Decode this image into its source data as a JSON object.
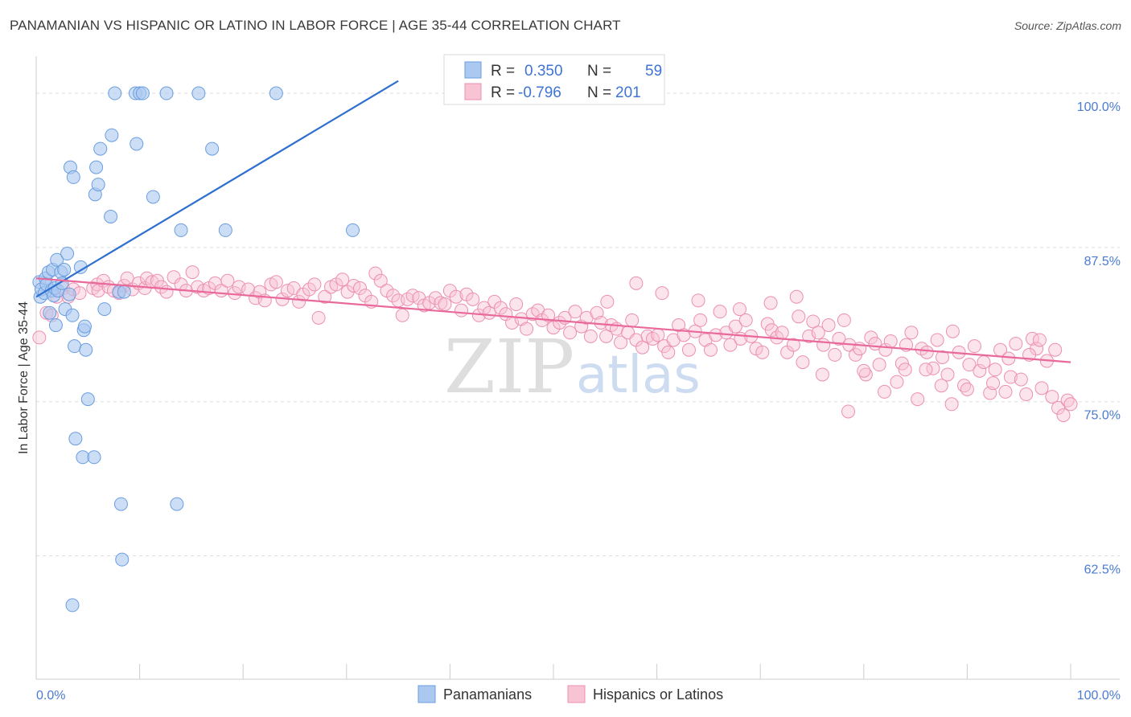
{
  "title": "PANAMANIAN VS HISPANIC OR LATINO IN LABOR FORCE | AGE 35-44 CORRELATION CHART",
  "source": "Source: ZipAtlas.com",
  "watermark": {
    "zip": "ZIP",
    "atlas": "atlas"
  },
  "colors": {
    "blue_fill": "#aac8f0",
    "blue_stroke": "#6a9ee0",
    "blue_line": "#2e6fcf",
    "pink_fill": "#f8c4d4",
    "pink_stroke": "#ec8fb0",
    "pink_line": "#e8699a",
    "tick_label": "#4a7bd0",
    "grid": "#dddddd"
  },
  "legend": {
    "rows": [
      {
        "r_label": "R =",
        "r_value": "0.350",
        "n_label": "N =",
        "n_value": "59"
      },
      {
        "r_label": "R =",
        "r_value": "-0.796",
        "n_label": "N =",
        "n_value": "201"
      }
    ]
  },
  "bottom_legend": [
    "Panamanians",
    "Hispanics or Latinos"
  ],
  "chart_data": {
    "type": "scatter",
    "title": "PANAMANIAN VS HISPANIC OR LATINO IN LABOR FORCE | AGE 35-44 CORRELATION CHART",
    "ylabel": "In Labor Force | Age 35-44",
    "xlabel": "",
    "x_tick_labels": [
      "0.0%",
      "100.0%"
    ],
    "y_tick_labels": [
      "100.0%",
      "87.5%",
      "75.0%",
      "62.5%"
    ],
    "y_ticks": [
      100.0,
      87.5,
      75.0,
      62.5
    ],
    "xlim": [
      0,
      100
    ],
    "ylim": [
      52.5,
      103
    ],
    "grid": "horizontal dashed",
    "legend_position": "top-center",
    "series": [
      {
        "name": "Panamanians",
        "color": "#aac8f0",
        "r": 0.35,
        "n": 59,
        "trend": {
          "x": [
            0,
            35
          ],
          "y": [
            83.5,
            101.0
          ]
        },
        "points": [
          [
            0.3,
            84.7
          ],
          [
            0.4,
            83.5
          ],
          [
            0.5,
            84.1
          ],
          [
            0.8,
            83.8
          ],
          [
            0.9,
            85.0
          ],
          [
            1.0,
            84.5
          ],
          [
            1.2,
            85.5
          ],
          [
            1.3,
            82.2
          ],
          [
            1.5,
            84.0
          ],
          [
            1.6,
            85.7
          ],
          [
            1.7,
            83.6
          ],
          [
            1.8,
            84.2
          ],
          [
            1.9,
            81.2
          ],
          [
            2.0,
            86.5
          ],
          [
            2.1,
            84.0
          ],
          [
            2.4,
            85.5
          ],
          [
            2.5,
            84.6
          ],
          [
            2.7,
            85.7
          ],
          [
            2.8,
            82.5
          ],
          [
            3.0,
            87.0
          ],
          [
            3.2,
            83.7
          ],
          [
            3.3,
            94.0
          ],
          [
            3.5,
            82.0
          ],
          [
            3.6,
            93.2
          ],
          [
            3.7,
            79.5
          ],
          [
            3.8,
            72.0
          ],
          [
            4.3,
            85.9
          ],
          [
            4.5,
            70.5
          ],
          [
            4.6,
            80.8
          ],
          [
            4.7,
            81.1
          ],
          [
            4.8,
            79.2
          ],
          [
            5.0,
            75.2
          ],
          [
            5.6,
            70.5
          ],
          [
            5.7,
            91.8
          ],
          [
            5.8,
            94.0
          ],
          [
            6.0,
            92.6
          ],
          [
            6.2,
            95.5
          ],
          [
            6.6,
            82.5
          ],
          [
            7.2,
            90.0
          ],
          [
            7.3,
            96.6
          ],
          [
            7.6,
            100.0
          ],
          [
            8.0,
            83.9
          ],
          [
            8.3,
            62.2
          ],
          [
            8.2,
            66.7
          ],
          [
            8.5,
            83.9
          ],
          [
            9.6,
            100.0
          ],
          [
            9.7,
            95.9
          ],
          [
            10.0,
            100.0
          ],
          [
            10.3,
            100.0
          ],
          [
            11.3,
            91.6
          ],
          [
            12.6,
            100.0
          ],
          [
            13.6,
            66.7
          ],
          [
            14.0,
            88.9
          ],
          [
            15.7,
            100.0
          ],
          [
            17.0,
            95.5
          ],
          [
            18.3,
            88.9
          ],
          [
            23.2,
            100.0
          ],
          [
            30.6,
            88.9
          ],
          [
            3.5,
            58.5
          ]
        ]
      },
      {
        "name": "Hispanics or Latinos",
        "color": "#f8c4d4",
        "r": -0.796,
        "n": 201,
        "trend": {
          "x": [
            0,
            100
          ],
          "y": [
            85.0,
            78.2
          ]
        },
        "points": [
          [
            0.3,
            80.2
          ],
          [
            1.0,
            82.2
          ],
          [
            1.5,
            82.0
          ],
          [
            2.0,
            83.5
          ],
          [
            2.6,
            84.2
          ],
          [
            3.1,
            83.5
          ],
          [
            3.6,
            84.1
          ],
          [
            4.2,
            83.8
          ],
          [
            5.5,
            84.2
          ],
          [
            5.9,
            84.5
          ],
          [
            6.0,
            84.0
          ],
          [
            6.5,
            84.8
          ],
          [
            7.0,
            84.3
          ],
          [
            7.5,
            84.0
          ],
          [
            8.0,
            83.8
          ],
          [
            8.5,
            84.4
          ],
          [
            8.8,
            85.0
          ],
          [
            9.3,
            84.1
          ],
          [
            9.9,
            84.6
          ],
          [
            10.5,
            84.2
          ],
          [
            10.7,
            85.0
          ],
          [
            11.2,
            84.7
          ],
          [
            11.7,
            84.8
          ],
          [
            12.1,
            84.3
          ],
          [
            12.6,
            83.9
          ],
          [
            13.3,
            85.1
          ],
          [
            14.0,
            84.5
          ],
          [
            14.5,
            84.0
          ],
          [
            15.1,
            85.5
          ],
          [
            15.6,
            84.3
          ],
          [
            16.2,
            84.0
          ],
          [
            16.7,
            84.2
          ],
          [
            17.3,
            84.6
          ],
          [
            17.9,
            84.0
          ],
          [
            18.5,
            84.8
          ],
          [
            19.2,
            83.8
          ],
          [
            19.6,
            84.3
          ],
          [
            20.5,
            84.1
          ],
          [
            21.2,
            83.4
          ],
          [
            21.6,
            83.9
          ],
          [
            22.1,
            83.2
          ],
          [
            22.7,
            84.5
          ],
          [
            23.2,
            84.7
          ],
          [
            23.8,
            83.3
          ],
          [
            24.3,
            84.0
          ],
          [
            24.9,
            84.2
          ],
          [
            25.4,
            83.1
          ],
          [
            25.8,
            83.7
          ],
          [
            26.4,
            84.1
          ],
          [
            26.9,
            84.5
          ],
          [
            27.3,
            81.8
          ],
          [
            27.9,
            83.5
          ],
          [
            28.5,
            84.3
          ],
          [
            29.0,
            84.5
          ],
          [
            29.6,
            84.9
          ],
          [
            30.1,
            83.9
          ],
          [
            30.7,
            84.4
          ],
          [
            31.3,
            84.2
          ],
          [
            31.8,
            83.6
          ],
          [
            32.4,
            83.1
          ],
          [
            32.8,
            85.4
          ],
          [
            33.3,
            84.8
          ],
          [
            33.9,
            84.0
          ],
          [
            34.5,
            83.6
          ],
          [
            35.0,
            83.2
          ],
          [
            35.4,
            82.0
          ],
          [
            35.9,
            83.3
          ],
          [
            36.4,
            83.6
          ],
          [
            37.0,
            83.4
          ],
          [
            37.5,
            82.8
          ],
          [
            38.0,
            83.0
          ],
          [
            38.6,
            83.4
          ],
          [
            39.1,
            83.0
          ],
          [
            39.5,
            82.9
          ],
          [
            40.0,
            84.0
          ],
          [
            40.6,
            83.5
          ],
          [
            41.1,
            82.4
          ],
          [
            41.6,
            83.7
          ],
          [
            42.2,
            83.3
          ],
          [
            42.8,
            82.0
          ],
          [
            43.3,
            82.6
          ],
          [
            43.8,
            82.2
          ],
          [
            44.3,
            83.1
          ],
          [
            44.9,
            82.6
          ],
          [
            45.4,
            82.1
          ],
          [
            46.0,
            81.4
          ],
          [
            46.4,
            82.9
          ],
          [
            46.9,
            81.7
          ],
          [
            47.4,
            80.9
          ],
          [
            48.0,
            82.1
          ],
          [
            48.5,
            82.4
          ],
          [
            48.9,
            81.6
          ],
          [
            49.5,
            82.0
          ],
          [
            50.0,
            81.0
          ],
          [
            50.6,
            81.4
          ],
          [
            51.1,
            81.8
          ],
          [
            51.6,
            80.6
          ],
          [
            52.1,
            82.3
          ],
          [
            52.7,
            81.1
          ],
          [
            53.2,
            81.8
          ],
          [
            53.6,
            80.3
          ],
          [
            54.2,
            82.2
          ],
          [
            54.6,
            81.4
          ],
          [
            55.1,
            80.3
          ],
          [
            55.6,
            81.2
          ],
          [
            56.1,
            80.9
          ],
          [
            56.5,
            79.8
          ],
          [
            57.2,
            80.6
          ],
          [
            57.6,
            81.6
          ],
          [
            58.0,
            80.0
          ],
          [
            58.6,
            79.4
          ],
          [
            59.1,
            80.3
          ],
          [
            59.6,
            80.1
          ],
          [
            60.1,
            80.4
          ],
          [
            60.7,
            79.5
          ],
          [
            61.1,
            79.0
          ],
          [
            61.6,
            80.0
          ],
          [
            62.1,
            81.2
          ],
          [
            62.6,
            80.4
          ],
          [
            63.1,
            79.2
          ],
          [
            63.7,
            80.7
          ],
          [
            64.2,
            81.6
          ],
          [
            64.7,
            80.0
          ],
          [
            65.2,
            79.2
          ],
          [
            65.7,
            80.4
          ],
          [
            66.1,
            82.3
          ],
          [
            66.7,
            80.6
          ],
          [
            67.1,
            79.6
          ],
          [
            67.6,
            81.1
          ],
          [
            68.1,
            80.1
          ],
          [
            68.6,
            81.6
          ],
          [
            69.1,
            80.3
          ],
          [
            69.6,
            79.3
          ],
          [
            70.2,
            79.0
          ],
          [
            70.7,
            81.3
          ],
          [
            71.1,
            80.8
          ],
          [
            71.6,
            80.2
          ],
          [
            72.1,
            80.6
          ],
          [
            72.6,
            79.0
          ],
          [
            73.2,
            79.6
          ],
          [
            73.7,
            81.9
          ],
          [
            74.1,
            78.2
          ],
          [
            74.7,
            80.3
          ],
          [
            75.1,
            81.5
          ],
          [
            75.6,
            80.6
          ],
          [
            76.1,
            79.6
          ],
          [
            76.6,
            81.2
          ],
          [
            77.2,
            78.8
          ],
          [
            77.6,
            80.1
          ],
          [
            78.1,
            81.6
          ],
          [
            78.6,
            79.6
          ],
          [
            79.2,
            78.8
          ],
          [
            79.6,
            79.3
          ],
          [
            80.2,
            77.2
          ],
          [
            80.7,
            80.2
          ],
          [
            81.1,
            79.7
          ],
          [
            81.5,
            78.0
          ],
          [
            82.1,
            79.2
          ],
          [
            82.6,
            79.9
          ],
          [
            83.2,
            76.6
          ],
          [
            83.7,
            78.1
          ],
          [
            84.1,
            79.6
          ],
          [
            84.6,
            80.6
          ],
          [
            85.2,
            75.2
          ],
          [
            85.6,
            79.3
          ],
          [
            86.1,
            79.0
          ],
          [
            86.7,
            77.7
          ],
          [
            87.1,
            80.0
          ],
          [
            87.6,
            78.6
          ],
          [
            88.1,
            77.2
          ],
          [
            88.6,
            80.7
          ],
          [
            89.2,
            79.0
          ],
          [
            89.7,
            76.3
          ],
          [
            90.2,
            78.0
          ],
          [
            90.7,
            79.5
          ],
          [
            91.2,
            77.5
          ],
          [
            91.6,
            78.2
          ],
          [
            92.2,
            75.7
          ],
          [
            92.7,
            77.6
          ],
          [
            93.2,
            79.2
          ],
          [
            93.7,
            75.8
          ],
          [
            94.2,
            77.0
          ],
          [
            94.7,
            79.7
          ],
          [
            95.2,
            76.8
          ],
          [
            95.7,
            75.6
          ],
          [
            96.3,
            80.1
          ],
          [
            96.7,
            79.3
          ],
          [
            97.2,
            76.1
          ],
          [
            97.7,
            78.3
          ],
          [
            98.2,
            75.4
          ],
          [
            98.8,
            74.5
          ],
          [
            99.3,
            73.9
          ],
          [
            99.7,
            75.1
          ],
          [
            100.0,
            74.8
          ],
          [
            98.5,
            79.2
          ],
          [
            97.0,
            80.0
          ],
          [
            96.0,
            78.8
          ],
          [
            94.0,
            78.5
          ],
          [
            92.5,
            76.5
          ],
          [
            90.0,
            76.0
          ],
          [
            88.5,
            74.8
          ],
          [
            87.5,
            76.3
          ],
          [
            86.0,
            77.6
          ],
          [
            84.0,
            77.6
          ],
          [
            82.0,
            75.8
          ],
          [
            80.0,
            77.5
          ],
          [
            78.5,
            74.2
          ],
          [
            76.0,
            77.2
          ],
          [
            73.5,
            83.5
          ],
          [
            71.0,
            83.0
          ],
          [
            68.0,
            82.5
          ],
          [
            64.0,
            83.2
          ],
          [
            60.5,
            83.8
          ],
          [
            58.0,
            84.6
          ],
          [
            55.2,
            83.1
          ]
        ]
      }
    ]
  }
}
